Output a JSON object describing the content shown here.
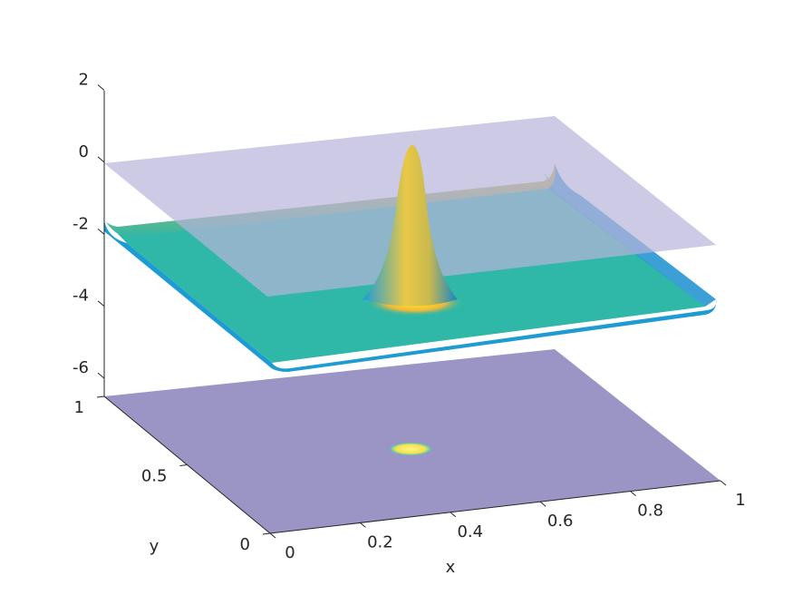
{
  "chart_data": {
    "type": "surface",
    "xlabel": "x",
    "ylabel": "y",
    "xlim": [
      0,
      1
    ],
    "ylim": [
      0,
      1
    ],
    "zlim": [
      -6.5,
      2
    ],
    "xticks": [
      0,
      0.2,
      0.4,
      0.6,
      0.8,
      1
    ],
    "yticks": [
      0,
      0.5,
      1
    ],
    "zticks": [
      -6,
      -4,
      -2,
      0,
      2
    ]
  }
}
